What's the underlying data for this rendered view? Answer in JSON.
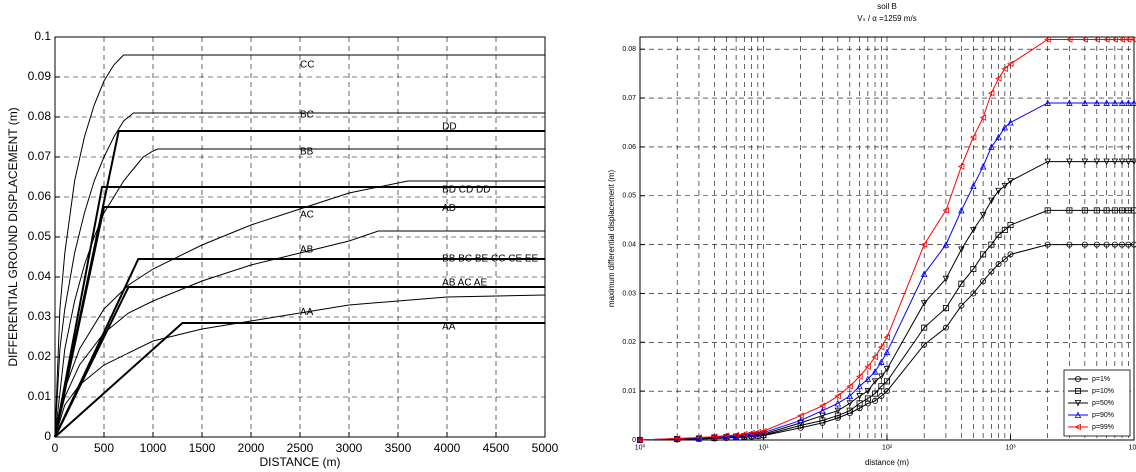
{
  "chart_data": [
    {
      "type": "line",
      "xlabel": "DISTANCE (m)",
      "ylabel": "DIFFERENTIAL GROUND DISPLACEMENT (m)",
      "xlim": [
        0,
        5000
      ],
      "xticks": [
        0,
        500,
        1000,
        1500,
        2000,
        2500,
        3000,
        3500,
        4000,
        4500,
        5000
      ],
      "ylim": [
        0,
        0.1
      ],
      "yticks": [
        0,
        0.01,
        0.02,
        0.03,
        0.04,
        0.05,
        0.06,
        0.07,
        0.08,
        0.09,
        0.1
      ],
      "grid": true,
      "series": [
        {
          "color": "#000000",
          "linewidth": 1,
          "x": [
            0,
            50,
            100,
            200,
            300,
            400,
            500,
            600,
            700,
            5000
          ],
          "values": [
            0,
            0.032,
            0.046,
            0.064,
            0.075,
            0.083,
            0.089,
            0.093,
            0.0955,
            0.0955
          ]
        },
        {
          "color": "#000000",
          "linewidth": 1,
          "x": [
            0,
            50,
            100,
            200,
            300,
            400,
            500,
            600,
            700,
            800,
            5000
          ],
          "values": [
            0,
            0.022,
            0.032,
            0.046,
            0.056,
            0.064,
            0.07,
            0.075,
            0.079,
            0.081,
            0.081
          ]
        },
        {
          "color": "#000000",
          "linewidth": 1,
          "x": [
            0,
            100,
            200,
            300,
            400,
            500,
            600,
            700,
            800,
            900,
            1000,
            1050,
            5000
          ],
          "values": [
            0,
            0.022,
            0.034,
            0.043,
            0.05,
            0.056,
            0.06,
            0.064,
            0.067,
            0.07,
            0.0715,
            0.072,
            0.072
          ]
        },
        {
          "color": "#000000",
          "linewidth": 1,
          "x": [
            0,
            100,
            250,
            500,
            750,
            1000,
            1500,
            2000,
            2500,
            3000,
            3600,
            5000
          ],
          "values": [
            0,
            0.012,
            0.022,
            0.032,
            0.038,
            0.042,
            0.048,
            0.053,
            0.057,
            0.061,
            0.064,
            0.064
          ]
        },
        {
          "color": "#000000",
          "linewidth": 1,
          "x": [
            0,
            100,
            250,
            500,
            750,
            1000,
            1500,
            2000,
            2500,
            3000,
            3300,
            5000
          ],
          "values": [
            0,
            0.01,
            0.018,
            0.026,
            0.031,
            0.034,
            0.039,
            0.043,
            0.046,
            0.049,
            0.0515,
            0.0515
          ]
        },
        {
          "color": "#000000",
          "linewidth": 1,
          "x": [
            0,
            100,
            250,
            500,
            1000,
            1500,
            2000,
            2500,
            3000,
            3500,
            4000,
            5000
          ],
          "values": [
            0,
            0.008,
            0.013,
            0.018,
            0.024,
            0.027,
            0.029,
            0.031,
            0.033,
            0.034,
            0.035,
            0.0355
          ]
        },
        {
          "color": "#000000",
          "linewidth": 2,
          "x": [
            0,
            650,
            5000
          ],
          "values": [
            0,
            0.0765,
            0.0765
          ]
        },
        {
          "color": "#000000",
          "linewidth": 2,
          "x": [
            0,
            480,
            5000
          ],
          "values": [
            0,
            0.0625,
            0.0625
          ]
        },
        {
          "color": "#000000",
          "linewidth": 2,
          "x": [
            0,
            500,
            5000
          ],
          "values": [
            0,
            0.0575,
            0.0575
          ]
        },
        {
          "color": "#000000",
          "linewidth": 2,
          "x": [
            0,
            850,
            5000
          ],
          "values": [
            0,
            0.0445,
            0.0445
          ]
        },
        {
          "color": "#000000",
          "linewidth": 2,
          "x": [
            0,
            750,
            5000
          ],
          "values": [
            0,
            0.0375,
            0.0375
          ]
        },
        {
          "color": "#000000",
          "linewidth": 2,
          "x": [
            0,
            1300,
            5000
          ],
          "values": [
            0,
            0.0285,
            0.0285
          ]
        }
      ],
      "annotations": [
        {
          "text": "CC",
          "x": 2500,
          "y": 0.093
        },
        {
          "text": "BC",
          "x": 2500,
          "y": 0.0805
        },
        {
          "text": "BB",
          "x": 2500,
          "y": 0.0713
        },
        {
          "text": "DD",
          "x": 3950,
          "y": 0.0775
        },
        {
          "text": "BD CD DD",
          "x": 3950,
          "y": 0.0618
        },
        {
          "text": "AD",
          "x": 3950,
          "y": 0.0572
        },
        {
          "text": "AC",
          "x": 2500,
          "y": 0.0555
        },
        {
          "text": "AB",
          "x": 2500,
          "y": 0.0468
        },
        {
          "text": "BB BC BE CC CE EE",
          "x": 3950,
          "y": 0.0445
        },
        {
          "text": "AB AC AE",
          "x": 3950,
          "y": 0.0385
        },
        {
          "text": "AA",
          "x": 2500,
          "y": 0.0312
        },
        {
          "text": "AA",
          "x": 3950,
          "y": 0.0275
        }
      ]
    },
    {
      "type": "line",
      "title": "soil B",
      "subtitle": "Vₛ / α =1259 m/s",
      "xlabel": "distance (m)",
      "ylabel": "maximum differential displacement (m)",
      "xscale": "log",
      "xlim": [
        1,
        10000
      ],
      "xticks": [
        {
          "value": 1,
          "label": "10⁰"
        },
        {
          "value": 10,
          "label": "10¹"
        },
        {
          "value": 100,
          "label": "10²"
        },
        {
          "value": 1000,
          "label": "10³"
        },
        {
          "value": 10000,
          "label": "10⁴"
        }
      ],
      "ylim": [
        0,
        0.0825
      ],
      "yticks": [
        0,
        0.01,
        0.02,
        0.03,
        0.04,
        0.05,
        0.06,
        0.07,
        0.08
      ],
      "grid": true,
      "legend": "lower right",
      "x": [
        1,
        2,
        3,
        4,
        5,
        6,
        7,
        8,
        9,
        10,
        20,
        30,
        40,
        50,
        60,
        70,
        80,
        90,
        100,
        200,
        300,
        400,
        500,
        600,
        700,
        800,
        900,
        1000,
        2000,
        3000,
        4000,
        5000,
        6000,
        7000,
        8000,
        9000,
        10000
      ],
      "series": [
        {
          "name": "p=1%",
          "color": "#000000",
          "marker": "circle",
          "values": [
            0,
            0.0001,
            0.0002,
            0.0003,
            0.0004,
            0.0005,
            0.0006,
            0.0007,
            0.0008,
            0.0009,
            0.0025,
            0.0035,
            0.0045,
            0.0055,
            0.0065,
            0.0075,
            0.008,
            0.009,
            0.01,
            0.0195,
            0.023,
            0.0275,
            0.03,
            0.0325,
            0.0345,
            0.036,
            0.037,
            0.038,
            0.04,
            0.04,
            0.04,
            0.04,
            0.04,
            0.04,
            0.04,
            0.04,
            0.04
          ]
        },
        {
          "name": "p=10%",
          "color": "#000000",
          "marker": "square",
          "values": [
            0,
            0.0002,
            0.0003,
            0.0004,
            0.0005,
            0.0006,
            0.0007,
            0.0008,
            0.0009,
            0.001,
            0.003,
            0.004,
            0.005,
            0.006,
            0.0075,
            0.0085,
            0.0095,
            0.011,
            0.012,
            0.023,
            0.027,
            0.032,
            0.035,
            0.038,
            0.04,
            0.042,
            0.043,
            0.044,
            0.047,
            0.047,
            0.047,
            0.047,
            0.047,
            0.047,
            0.047,
            0.047,
            0.047
          ]
        },
        {
          "name": "p=50%",
          "color": "#000000",
          "marker": "triangle-down",
          "values": [
            0,
            0.0002,
            0.0003,
            0.0005,
            0.0006,
            0.0007,
            0.0008,
            0.001,
            0.0011,
            0.0012,
            0.0035,
            0.005,
            0.006,
            0.0075,
            0.009,
            0.01,
            0.012,
            0.013,
            0.0145,
            0.028,
            0.033,
            0.039,
            0.043,
            0.046,
            0.049,
            0.051,
            0.052,
            0.053,
            0.057,
            0.057,
            0.057,
            0.057,
            0.057,
            0.057,
            0.057,
            0.057,
            0.057
          ]
        },
        {
          "name": "p=90%",
          "color": "#0000ff",
          "marker": "triangle-up",
          "values": [
            0,
            0.0003,
            0.0004,
            0.0006,
            0.0008,
            0.0008,
            0.001,
            0.0012,
            0.0013,
            0.0015,
            0.004,
            0.006,
            0.0075,
            0.009,
            0.011,
            0.0125,
            0.014,
            0.016,
            0.018,
            0.034,
            0.04,
            0.047,
            0.052,
            0.056,
            0.06,
            0.062,
            0.064,
            0.065,
            0.069,
            0.069,
            0.069,
            0.069,
            0.069,
            0.069,
            0.069,
            0.069,
            0.069
          ]
        },
        {
          "name": "p=99%",
          "color": "#ff0000",
          "marker": "triangle-left",
          "values": [
            0,
            0.0003,
            0.0005,
            0.0007,
            0.0009,
            0.001,
            0.0012,
            0.0014,
            0.0016,
            0.0018,
            0.005,
            0.007,
            0.009,
            0.011,
            0.013,
            0.015,
            0.017,
            0.019,
            0.021,
            0.04,
            0.047,
            0.056,
            0.062,
            0.066,
            0.071,
            0.074,
            0.076,
            0.077,
            0.082,
            0.082,
            0.082,
            0.082,
            0.082,
            0.082,
            0.082,
            0.082,
            0.082
          ]
        }
      ]
    }
  ]
}
